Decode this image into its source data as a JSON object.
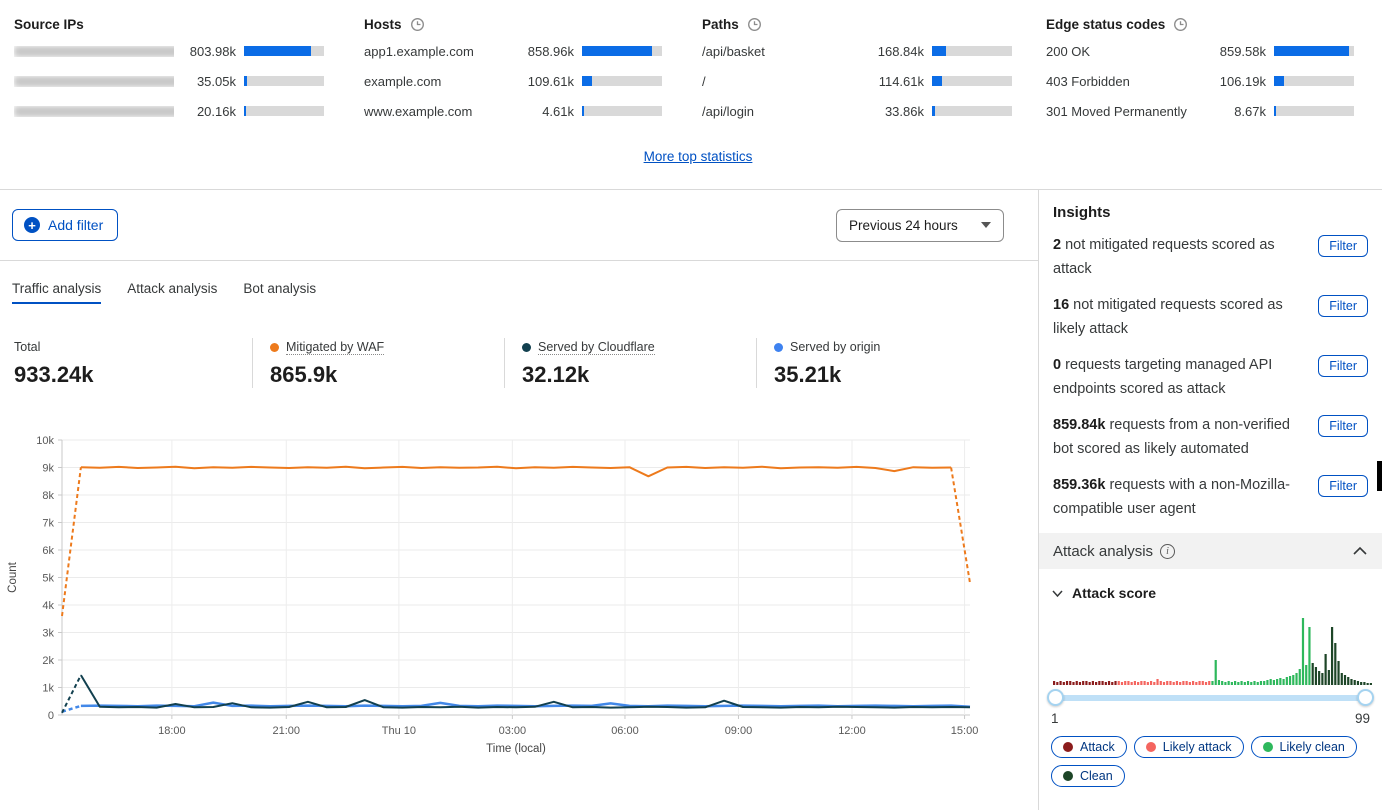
{
  "top_stats": {
    "more_link": "More top statistics",
    "columns": [
      {
        "title": "Source IPs",
        "has_clock": false,
        "rows": [
          {
            "name": "",
            "blurred": true,
            "value": "803.98k",
            "pct": 84
          },
          {
            "name": "",
            "blurred": true,
            "value": "35.05k",
            "pct": 4
          },
          {
            "name": "",
            "blurred": true,
            "value": "20.16k",
            "pct": 3
          }
        ]
      },
      {
        "title": "Hosts",
        "has_clock": true,
        "rows": [
          {
            "name": "app1.example.com",
            "blurred": false,
            "value": "858.96k",
            "pct": 88
          },
          {
            "name": "example.com",
            "blurred": false,
            "value": "109.61k",
            "pct": 13
          },
          {
            "name": "www.example.com",
            "blurred": false,
            "value": "4.61k",
            "pct": 2
          }
        ]
      },
      {
        "title": "Paths",
        "has_clock": true,
        "rows": [
          {
            "name": "/api/basket",
            "blurred": false,
            "value": "168.84k",
            "pct": 17
          },
          {
            "name": "/",
            "blurred": false,
            "value": "114.61k",
            "pct": 12
          },
          {
            "name": "/api/login",
            "blurred": false,
            "value": "33.86k",
            "pct": 4
          }
        ]
      },
      {
        "title": "Edge status codes",
        "has_clock": true,
        "rows": [
          {
            "name": "200 OK",
            "blurred": false,
            "value": "859.58k",
            "pct": 94
          },
          {
            "name": "403 Forbidden",
            "blurred": false,
            "value": "106.19k",
            "pct": 12
          },
          {
            "name": "301 Moved Permanently",
            "blurred": false,
            "value": "8.67k",
            "pct": 2
          }
        ]
      }
    ]
  },
  "filter_bar": {
    "add_filter_label": "Add filter",
    "time_range": "Previous 24 hours"
  },
  "tabs": {
    "active_index": 0,
    "items": [
      "Traffic analysis",
      "Attack analysis",
      "Bot analysis"
    ]
  },
  "summary": {
    "items": [
      {
        "label": "Total",
        "value": "933.24k",
        "dot": null,
        "underline": false
      },
      {
        "label": "Mitigated by WAF",
        "value": "865.9k",
        "dot": "#ED7A1C",
        "underline": true
      },
      {
        "label": "Served by Cloudflare",
        "value": "32.12k",
        "dot": "#12404f",
        "underline": true
      },
      {
        "label": "Served by origin",
        "value": "35.21k",
        "dot": "#3e82f0",
        "underline": false
      }
    ]
  },
  "chart_data": {
    "type": "line",
    "ylabel": "Count",
    "xlabel": "Time (local)",
    "ylim": [
      0,
      10000
    ],
    "yticks": [
      "0",
      "1k",
      "2k",
      "3k",
      "4k",
      "5k",
      "6k",
      "7k",
      "8k",
      "9k",
      "10k"
    ],
    "xticks": [
      {
        "label": "18:00",
        "pos": 0.121
      },
      {
        "label": "21:00",
        "pos": 0.247
      },
      {
        "label": "Thu 10",
        "pos": 0.371
      },
      {
        "label": "03:00",
        "pos": 0.496
      },
      {
        "label": "06:00",
        "pos": 0.62
      },
      {
        "label": "09:00",
        "pos": 0.745
      },
      {
        "label": "12:00",
        "pos": 0.87
      },
      {
        "label": "15:00",
        "pos": 0.994
      }
    ],
    "series": [
      {
        "name": "Served by origin",
        "color": "#4288e8",
        "width": 2.5,
        "dash_head": 1,
        "dash_tail": 0,
        "values": [
          120,
          330,
          340,
          330,
          320,
          340,
          330,
          320,
          450,
          330,
          340,
          320,
          330,
          340,
          330,
          320,
          340,
          330,
          320,
          330,
          440,
          330,
          320,
          340,
          330,
          320,
          330,
          340,
          330,
          420,
          330,
          320,
          340,
          330,
          320,
          330,
          340,
          330,
          320,
          330,
          340,
          320,
          330,
          340,
          330,
          320,
          330,
          340,
          300
        ]
      },
      {
        "name": "Served by Cloudflare",
        "color": "#12404f",
        "width": 2,
        "dash_head": 1,
        "dash_tail": 0,
        "values": [
          80,
          1450,
          300,
          280,
          290,
          270,
          400,
          280,
          290,
          430,
          280,
          270,
          290,
          480,
          280,
          290,
          540,
          280,
          270,
          290,
          280,
          300,
          270,
          290,
          280,
          300,
          480,
          280,
          290,
          270,
          280,
          300,
          290,
          270,
          280,
          520,
          290,
          280,
          270,
          290,
          280,
          300,
          290,
          280,
          270,
          290,
          280,
          290,
          280
        ]
      },
      {
        "name": "Mitigated by WAF",
        "color": "#ED7A1C",
        "width": 2,
        "dash_head": 1,
        "dash_tail": 1,
        "values": [
          3600,
          9010,
          8990,
          9020,
          8980,
          9000,
          9030,
          8970,
          9010,
          8990,
          9020,
          9000,
          8980,
          9010,
          8990,
          9030,
          8970,
          9000,
          9020,
          8980,
          9010,
          8990,
          9000,
          9030,
          8970,
          9010,
          8990,
          9020,
          9000,
          8980,
          9010,
          8680,
          9000,
          9020,
          8980,
          9010,
          8990,
          9030,
          8970,
          9000,
          9010,
          8990,
          9020,
          8980,
          8870,
          9010,
          8990,
          9000,
          4800
        ]
      }
    ]
  },
  "sidebar": {
    "insights": {
      "title": "Insights",
      "filter_label": "Filter",
      "items": [
        {
          "count": "2",
          "text": "not mitigated requests scored as attack"
        },
        {
          "count": "16",
          "text": "not mitigated requests scored as likely attack"
        },
        {
          "count": "0",
          "text": "requests targeting managed API endpoints scored as attack"
        },
        {
          "count": "859.84k",
          "text": "requests from a non-verified bot scored as likely automated"
        },
        {
          "count": "859.36k",
          "text": "requests with a non-Mozilla-compatible user agent"
        }
      ]
    },
    "attack_analysis": {
      "title": "Attack analysis",
      "score_label": "Attack score",
      "slider_min": "1",
      "slider_max": "99",
      "histogram": {
        "ranges": [
          {
            "label": "Attack",
            "color": "#8b1c1c",
            "from": 1,
            "to": 20
          },
          {
            "label": "Likely attack",
            "color": "#f4655f",
            "from": 21,
            "to": 49
          },
          {
            "label": "Likely clean",
            "color": "#2eb85c",
            "from": 50,
            "to": 80
          },
          {
            "label": "Clean",
            "color": "#1d4527",
            "from": 81,
            "to": 99
          }
        ],
        "values": [
          4,
          3,
          4,
          3,
          4,
          4,
          3,
          4,
          3,
          4,
          4,
          3,
          4,
          3,
          4,
          4,
          3,
          4,
          3,
          4,
          4,
          3,
          4,
          4,
          3,
          4,
          3,
          4,
          4,
          3,
          4,
          3,
          6,
          4,
          3,
          4,
          4,
          3,
          4,
          3,
          4,
          4,
          3,
          4,
          3,
          4,
          4,
          3,
          4,
          4,
          25,
          5,
          4,
          3,
          4,
          3,
          4,
          3,
          4,
          3,
          4,
          3,
          4,
          3,
          4,
          4,
          5,
          6,
          5,
          6,
          7,
          6,
          8,
          9,
          10,
          12,
          16,
          67,
          20,
          58,
          22,
          18,
          14,
          12,
          31,
          15,
          58,
          42,
          24,
          12,
          10,
          8,
          6,
          5,
          4,
          3,
          3,
          2,
          2
        ]
      }
    }
  }
}
